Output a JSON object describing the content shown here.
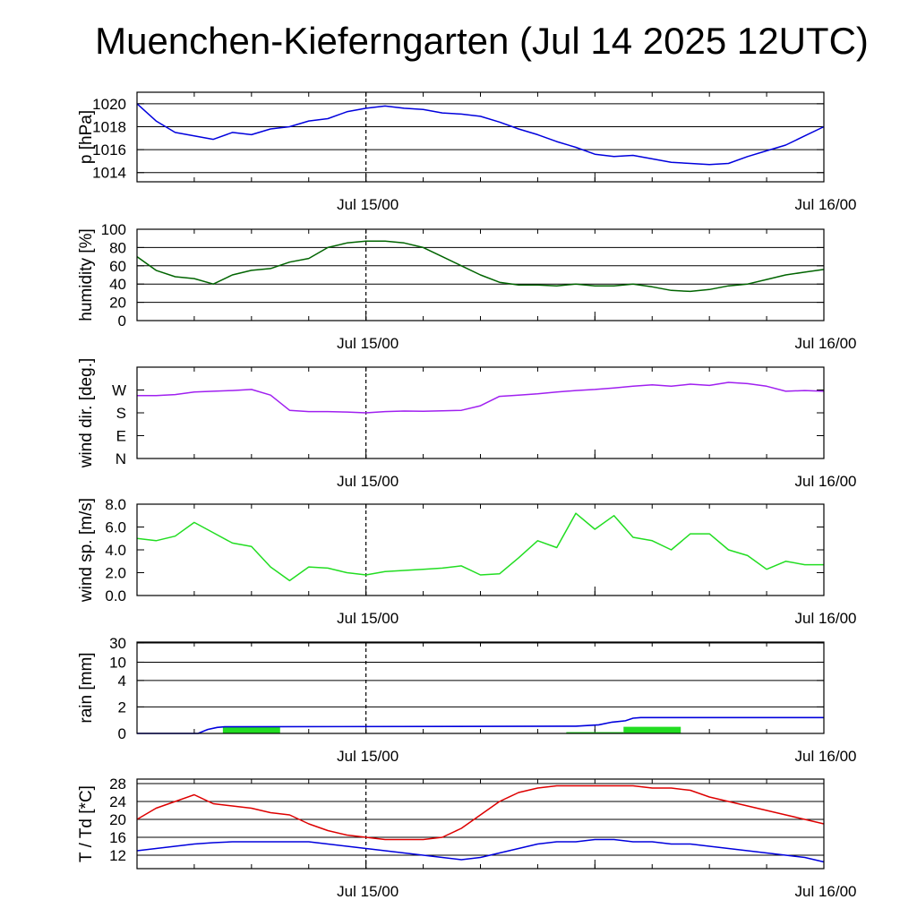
{
  "title": "Muenchen-Kieferngarten (Jul 14 2025 12UTC)",
  "colors": {
    "pressure": "#0000dd",
    "humidity": "#006400",
    "wind_dir": "#a020f0",
    "wind_speed": "#22dd22",
    "rain_total": "#0000dd",
    "rain_bars": "#22dd22",
    "temperature": "#dd0000",
    "dewpoint": "#0000dd",
    "grid": "#000000"
  },
  "chart_data": [
    {
      "type": "line",
      "ylabel": "p [hPa]",
      "ylim": [
        1013.2,
        1021.0
      ],
      "yticks": [
        "1014",
        "1016",
        "1018",
        "1020"
      ],
      "ytick_values": [
        1014,
        1016,
        1018,
        1020
      ],
      "grid": "horizontal",
      "x_tick_labels": [
        "Jul 15/00",
        "Jul 16/00"
      ],
      "x_hours": [
        0,
        1,
        2,
        3,
        4,
        5,
        6,
        7,
        8,
        9,
        10,
        11,
        12,
        13,
        14,
        15,
        16,
        17,
        18,
        19,
        20,
        21,
        22,
        23,
        24,
        25,
        26,
        27,
        28,
        29,
        30,
        31,
        32,
        33,
        34,
        35,
        36
      ],
      "series": [
        {
          "values": [
            1020.0,
            1018.5,
            1017.5,
            1017.2,
            1016.9,
            1017.5,
            1017.3,
            1017.8,
            1018.0,
            1018.5,
            1018.7,
            1019.3,
            1019.6,
            1019.8,
            1019.6,
            1019.5,
            1019.2,
            1019.1,
            1018.9,
            1018.4,
            1017.8,
            1017.3,
            1016.7,
            1016.2,
            1015.6,
            1015.4,
            1015.5,
            1015.2,
            1014.9,
            1014.8,
            1014.7,
            1014.8,
            1015.4,
            1015.9,
            1016.4,
            1017.2,
            1018.0
          ]
        }
      ]
    },
    {
      "type": "line",
      "ylabel": "humidity [%]",
      "ylim": [
        0,
        100
      ],
      "yticks": [
        "0",
        "20",
        "40",
        "60",
        "80",
        "100"
      ],
      "ytick_values": [
        0,
        20,
        40,
        60,
        80,
        100
      ],
      "grid": "horizontal",
      "x_tick_labels": [
        "Jul 15/00",
        "Jul 16/00"
      ],
      "x_hours": [
        0,
        1,
        2,
        3,
        4,
        5,
        6,
        7,
        8,
        9,
        10,
        11,
        12,
        13,
        14,
        15,
        16,
        17,
        18,
        19,
        20,
        21,
        22,
        23,
        24,
        25,
        26,
        27,
        28,
        29,
        30,
        31,
        32,
        33,
        34,
        35,
        36
      ],
      "series": [
        {
          "values": [
            70,
            55,
            48,
            46,
            40,
            50,
            55,
            57,
            64,
            68,
            80,
            85,
            87,
            87,
            85,
            80,
            70,
            60,
            50,
            42,
            39,
            39,
            38,
            40,
            38,
            38,
            40,
            37,
            33,
            32,
            34,
            38,
            40,
            45,
            50,
            53,
            56
          ]
        }
      ]
    },
    {
      "type": "line",
      "ylabel": "wind dir. [deg.]",
      "ylim": [
        0,
        360
      ],
      "yticks": [
        "N",
        "E",
        "S",
        "W"
      ],
      "ytick_values": [
        0,
        90,
        180,
        270
      ],
      "grid": "none",
      "x_tick_labels": [
        "Jul 15/00",
        "Jul 16/00"
      ],
      "x_hours": [
        0,
        1,
        2,
        3,
        4,
        5,
        6,
        7,
        8,
        9,
        10,
        11,
        12,
        13,
        14,
        15,
        16,
        17,
        18,
        19,
        20,
        21,
        22,
        23,
        24,
        25,
        26,
        27,
        28,
        29,
        30,
        31,
        32,
        33,
        34,
        35,
        36
      ],
      "series": [
        {
          "values": [
            248,
            248,
            252,
            262,
            265,
            268,
            272,
            250,
            190,
            185,
            185,
            183,
            180,
            185,
            187,
            186,
            188,
            190,
            208,
            245,
            250,
            255,
            262,
            268,
            272,
            278,
            285,
            290,
            285,
            293,
            288,
            300,
            295,
            285,
            265,
            268,
            265
          ]
        }
      ]
    },
    {
      "type": "line",
      "ylabel": "wind sp. [m/s]",
      "ylim": [
        0,
        8.0
      ],
      "yticks": [
        "0.0",
        "2.0",
        "4.0",
        "6.0",
        "8.0"
      ],
      "ytick_values": [
        0,
        2,
        4,
        6,
        8
      ],
      "grid": "none",
      "x_tick_labels": [
        "Jul 15/00",
        "Jul 16/00"
      ],
      "x_hours": [
        0,
        1,
        2,
        3,
        4,
        5,
        6,
        7,
        8,
        9,
        10,
        11,
        12,
        13,
        14,
        15,
        16,
        17,
        18,
        19,
        20,
        21,
        22,
        23,
        24,
        25,
        26,
        27,
        28,
        29,
        30,
        31,
        32,
        33,
        34,
        35,
        36
      ],
      "series": [
        {
          "values": [
            5.0,
            4.8,
            5.2,
            6.4,
            5.5,
            4.6,
            4.3,
            2.5,
            1.3,
            2.5,
            2.4,
            2.0,
            1.8,
            2.1,
            2.2,
            2.3,
            2.4,
            2.6,
            1.8,
            1.9,
            3.3,
            4.8,
            4.2,
            7.2,
            5.8,
            7.0,
            5.1,
            4.8,
            4.0,
            5.4,
            5.4,
            4.0,
            3.5,
            2.3,
            3.0,
            2.7,
            2.7
          ]
        }
      ]
    },
    {
      "type": "bar",
      "ylabel": "rain [mm]",
      "ylim": [
        0,
        30
      ],
      "yticks": [
        "0",
        "2",
        "4",
        "10",
        "30"
      ],
      "ytick_values": [
        0,
        2,
        4,
        10,
        30
      ],
      "grid": "horizontal",
      "x_tick_labels": [
        "Jul 15/00",
        "Jul 16/00"
      ],
      "bars": [
        {
          "start_hour": 4.5,
          "end_hour": 7.5,
          "value": 0.5
        },
        {
          "start_hour": 22.5,
          "end_hour": 25.5,
          "value": 0.1
        },
        {
          "start_hour": 25.5,
          "end_hour": 28.5,
          "value": 0.5
        }
      ],
      "total_line": {
        "x_hours": [
          0,
          3.2,
          3.7,
          4.2,
          4.6,
          5,
          23,
          24.2,
          24.9,
          25.6,
          26,
          26.4,
          36
        ],
        "values": [
          0,
          0,
          0.3,
          0.45,
          0.5,
          0.5,
          0.55,
          0.65,
          0.85,
          0.95,
          1.15,
          1.2,
          1.2
        ]
      }
    },
    {
      "type": "line",
      "ylabel": "T / Td [*C]",
      "ylim": [
        9,
        29
      ],
      "yticks": [
        "12",
        "16",
        "20",
        "24",
        "28"
      ],
      "ytick_values": [
        12,
        16,
        20,
        24,
        28
      ],
      "grid": "horizontal",
      "x_tick_labels": [
        "Jul 15/00",
        "Jul 16/00"
      ],
      "x_hours": [
        0,
        1,
        2,
        3,
        4,
        5,
        6,
        7,
        8,
        9,
        10,
        11,
        12,
        13,
        14,
        15,
        16,
        17,
        18,
        19,
        20,
        21,
        22,
        23,
        24,
        25,
        26,
        27,
        28,
        29,
        30,
        31,
        32,
        33,
        34,
        35,
        36
      ],
      "series": [
        {
          "name": "T",
          "values": [
            20,
            22.5,
            24,
            25.5,
            23.5,
            23,
            22.5,
            21.5,
            21,
            19,
            17.5,
            16.5,
            16,
            15.5,
            15.5,
            15.5,
            16,
            18,
            21,
            24,
            26,
            27,
            27.5,
            27.5,
            27.5,
            27.5,
            27.5,
            27,
            27,
            26.5,
            25,
            24,
            23,
            22,
            21,
            20,
            19
          ]
        },
        {
          "name": "Td",
          "values": [
            13,
            13.5,
            14,
            14.5,
            14.8,
            15,
            15,
            15,
            15,
            15,
            14.5,
            14,
            13.5,
            13,
            12.5,
            12,
            11.5,
            11,
            11.5,
            12.5,
            13.5,
            14.5,
            15,
            15,
            15.5,
            15.5,
            15,
            15,
            14.5,
            14.5,
            14,
            13.5,
            13,
            12.5,
            12,
            11.5,
            10.5
          ]
        }
      ]
    }
  ]
}
